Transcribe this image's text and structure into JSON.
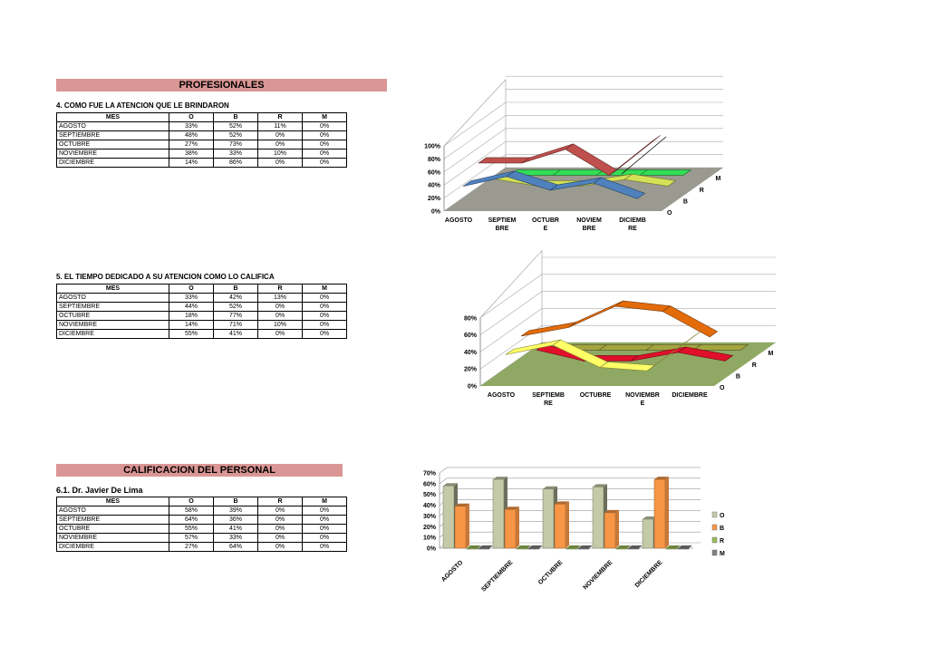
{
  "sections": {
    "profesionales": "PROFESIONALES",
    "calificacion": "CALIFICACION DEL PERSONAL"
  },
  "tables": [
    {
      "title": "4. COMO FUE LA ATENCION QUE LE BRINDARON",
      "headers": [
        "MES",
        "O",
        "B",
        "R",
        "M"
      ],
      "rows": [
        [
          "AGOSTO",
          "33%",
          "52%",
          "11%",
          "0%"
        ],
        [
          "SEPTIEMBRE",
          "48%",
          "52%",
          "0%",
          "0%"
        ],
        [
          "OCTUBRE",
          "27%",
          "73%",
          "0%",
          "0%"
        ],
        [
          "NOVIEMBRE",
          "38%",
          "33%",
          "10%",
          "0%"
        ],
        [
          "DICIEMBRE",
          "14%",
          "86%",
          "0%",
          "0%"
        ]
      ]
    },
    {
      "title": "5. EL TIEMPO DEDICADO A SU ATENCION COMO LO CALIFICA",
      "headers": [
        "MES",
        "O",
        "B",
        "R",
        "M"
      ],
      "rows": [
        [
          "AGOSTO",
          "33%",
          "42%",
          "13%",
          "0%"
        ],
        [
          "SEPTIEMBRE",
          "44%",
          "52%",
          "0%",
          "0%"
        ],
        [
          "OCTUBRE",
          "18%",
          "77%",
          "0%",
          "0%"
        ],
        [
          "NOVIEMBRE",
          "14%",
          "71%",
          "10%",
          "0%"
        ],
        [
          "DICIEMBRE",
          "55%",
          "41%",
          "0%",
          "0%"
        ]
      ]
    },
    {
      "title": "6.1. Dr. Javier De Lima",
      "headers": [
        "MES",
        "O",
        "B",
        "R",
        "M"
      ],
      "rows": [
        [
          "AGOSTO",
          "58%",
          "39%",
          "0%",
          "0%"
        ],
        [
          "SEPTIEMBRE",
          "64%",
          "36%",
          "0%",
          "0%"
        ],
        [
          "OCTUBRE",
          "55%",
          "41%",
          "0%",
          "0%"
        ],
        [
          "NOVIEMBRE",
          "57%",
          "33%",
          "0%",
          "0%"
        ],
        [
          "DICIEMBRE",
          "27%",
          "64%",
          "0%",
          "0%"
        ]
      ]
    }
  ],
  "chart_data": [
    {
      "type": "line",
      "title": "",
      "categories": [
        [
          "AGOSTO"
        ],
        [
          "SEPTIEM",
          "BRE"
        ],
        [
          "OCTUBR",
          "E"
        ],
        [
          "NOVIEM",
          "BRE"
        ],
        [
          "DICIEMB",
          "RE"
        ]
      ],
      "yticks": [
        "0%",
        "20%",
        "40%",
        "60%",
        "80%",
        "100%"
      ],
      "ylim": [
        0,
        100
      ],
      "series": [
        {
          "name": "O",
          "values": [
            33,
            48,
            27,
            38,
            14
          ],
          "color": "#4f81bd"
        },
        {
          "name": "B",
          "values": [
            52,
            52,
            73,
            33,
            86
          ],
          "color": "#c0504d"
        },
        {
          "name": "R",
          "values": [
            11,
            0,
            0,
            10,
            0
          ],
          "color": "#d4e157"
        },
        {
          "name": "M",
          "values": [
            0,
            0,
            0,
            0,
            0
          ],
          "color": "#33dd55"
        }
      ],
      "floor_color": "#9a9a90"
    },
    {
      "type": "line",
      "title": "",
      "categories": [
        [
          "AGOSTO"
        ],
        [
          "SEPTIEMB",
          "RE"
        ],
        [
          "OCTUBRE"
        ],
        [
          "NOVIEMBR",
          "E"
        ],
        [
          "DICIEMBRE"
        ]
      ],
      "yticks": [
        "0%",
        "20%",
        "40%",
        "60%",
        "80%"
      ],
      "ylim": [
        0,
        80
      ],
      "series": [
        {
          "name": "O",
          "values": [
            33,
            44,
            18,
            14,
            55
          ],
          "color": "#ffff66"
        },
        {
          "name": "B",
          "values": [
            42,
            52,
            77,
            71,
            41
          ],
          "color": "#e36c0a"
        },
        {
          "name": "R",
          "values": [
            13,
            0,
            0,
            10,
            0
          ],
          "color": "#e0102a"
        },
        {
          "name": "M",
          "values": [
            0,
            0,
            0,
            0,
            0
          ],
          "color": "#a5a540"
        }
      ],
      "floor_color": "#8fa863"
    },
    {
      "type": "bar",
      "title": "",
      "categories": [
        "AGOSTO",
        "SEPTIEMBRE",
        "OCTUBRE",
        "NOVIEMBRE",
        "DICIEMBRE"
      ],
      "yticks": [
        "0%",
        "10%",
        "20%",
        "30%",
        "40%",
        "50%",
        "60%",
        "70%"
      ],
      "ylim": [
        0,
        70
      ],
      "series": [
        {
          "name": "O",
          "values": [
            58,
            64,
            55,
            57,
            27
          ],
          "color": "#c4c9a8"
        },
        {
          "name": "B",
          "values": [
            39,
            36,
            41,
            33,
            64
          ],
          "color": "#f79646"
        },
        {
          "name": "R",
          "values": [
            0,
            0,
            0,
            0,
            0
          ],
          "color": "#9bbb59"
        },
        {
          "name": "M",
          "values": [
            0,
            0,
            0,
            0,
            0
          ],
          "color": "#808080"
        }
      ],
      "legend": "right"
    }
  ]
}
